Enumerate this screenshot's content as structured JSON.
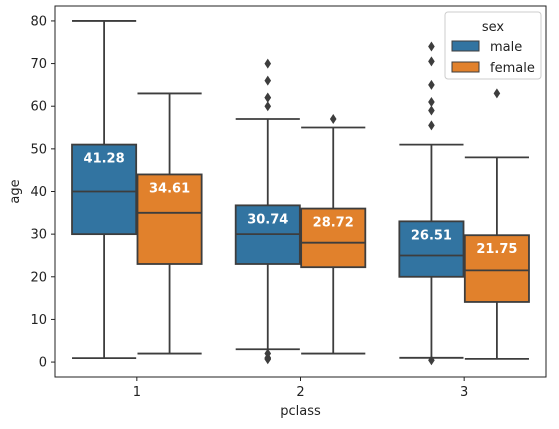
{
  "chart_data": {
    "type": "boxplot",
    "title": "",
    "xlabel": "pclass",
    "ylabel": "age",
    "categories": [
      "1",
      "2",
      "3"
    ],
    "ylim": [
      -3.5,
      83.5
    ],
    "yticks": [
      0,
      10,
      20,
      30,
      40,
      50,
      60,
      70,
      80
    ],
    "grid": false,
    "legend": {
      "title": "sex",
      "position": "top-right"
    },
    "series": [
      {
        "name": "male",
        "color": "#3274a1",
        "boxes": [
          {
            "category": "1",
            "whisker_low": 0.92,
            "q1": 30,
            "median": 40,
            "q3": 51,
            "whisker_high": 80,
            "outliers": [],
            "mean_label": "41.28"
          },
          {
            "category": "2",
            "whisker_low": 3,
            "q1": 23,
            "median": 30,
            "q3": 36.75,
            "whisker_high": 57,
            "outliers": [
              0.67,
              0.83,
              1,
              2,
              60,
              62,
              62,
              66,
              70
            ],
            "mean_label": "30.74"
          },
          {
            "category": "3",
            "whisker_low": 1,
            "q1": 20,
            "median": 25,
            "q3": 33,
            "whisker_high": 51,
            "outliers": [
              0.42,
              55.5,
              59,
              61,
              65,
              70.5,
              74
            ],
            "mean_label": "26.51"
          }
        ]
      },
      {
        "name": "female",
        "color": "#e1812c",
        "boxes": [
          {
            "category": "1",
            "whisker_low": 2,
            "q1": 23,
            "median": 35,
            "q3": 44,
            "whisker_high": 63,
            "outliers": [],
            "mean_label": "34.61"
          },
          {
            "category": "2",
            "whisker_low": 2,
            "q1": 22.25,
            "median": 28,
            "q3": 36,
            "whisker_high": 55,
            "outliers": [
              57
            ],
            "mean_label": "28.72"
          },
          {
            "category": "3",
            "whisker_low": 0.75,
            "q1": 14.1,
            "median": 21.5,
            "q3": 29.75,
            "whisker_high": 48,
            "outliers": [
              63
            ],
            "mean_label": "21.75"
          }
        ]
      }
    ]
  }
}
